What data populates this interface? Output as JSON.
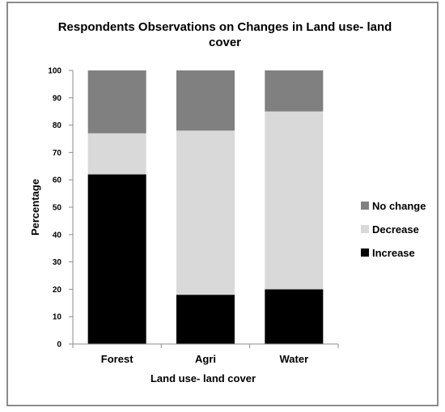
{
  "chart_data": {
    "type": "bar",
    "stacked": true,
    "title_lines": [
      "Respondents  Observations on Changes in Land use- land",
      "cover"
    ],
    "xlabel": "Land use- land cover",
    "ylabel": "Percentage",
    "categories": [
      "Forest",
      "Agri",
      "Water"
    ],
    "ylim": [
      0,
      100
    ],
    "yticks": [
      0,
      10,
      20,
      30,
      40,
      50,
      60,
      70,
      80,
      90,
      100
    ],
    "grid": false,
    "legend_position": "right",
    "series": [
      {
        "name": "Increase",
        "values": [
          62,
          18,
          20
        ],
        "color": "#000000"
      },
      {
        "name": "Decrease",
        "values": [
          15,
          60,
          65
        ],
        "color": "#d9d9d9"
      },
      {
        "name": "No change",
        "values": [
          23,
          22,
          15
        ],
        "color": "#808080"
      }
    ]
  }
}
